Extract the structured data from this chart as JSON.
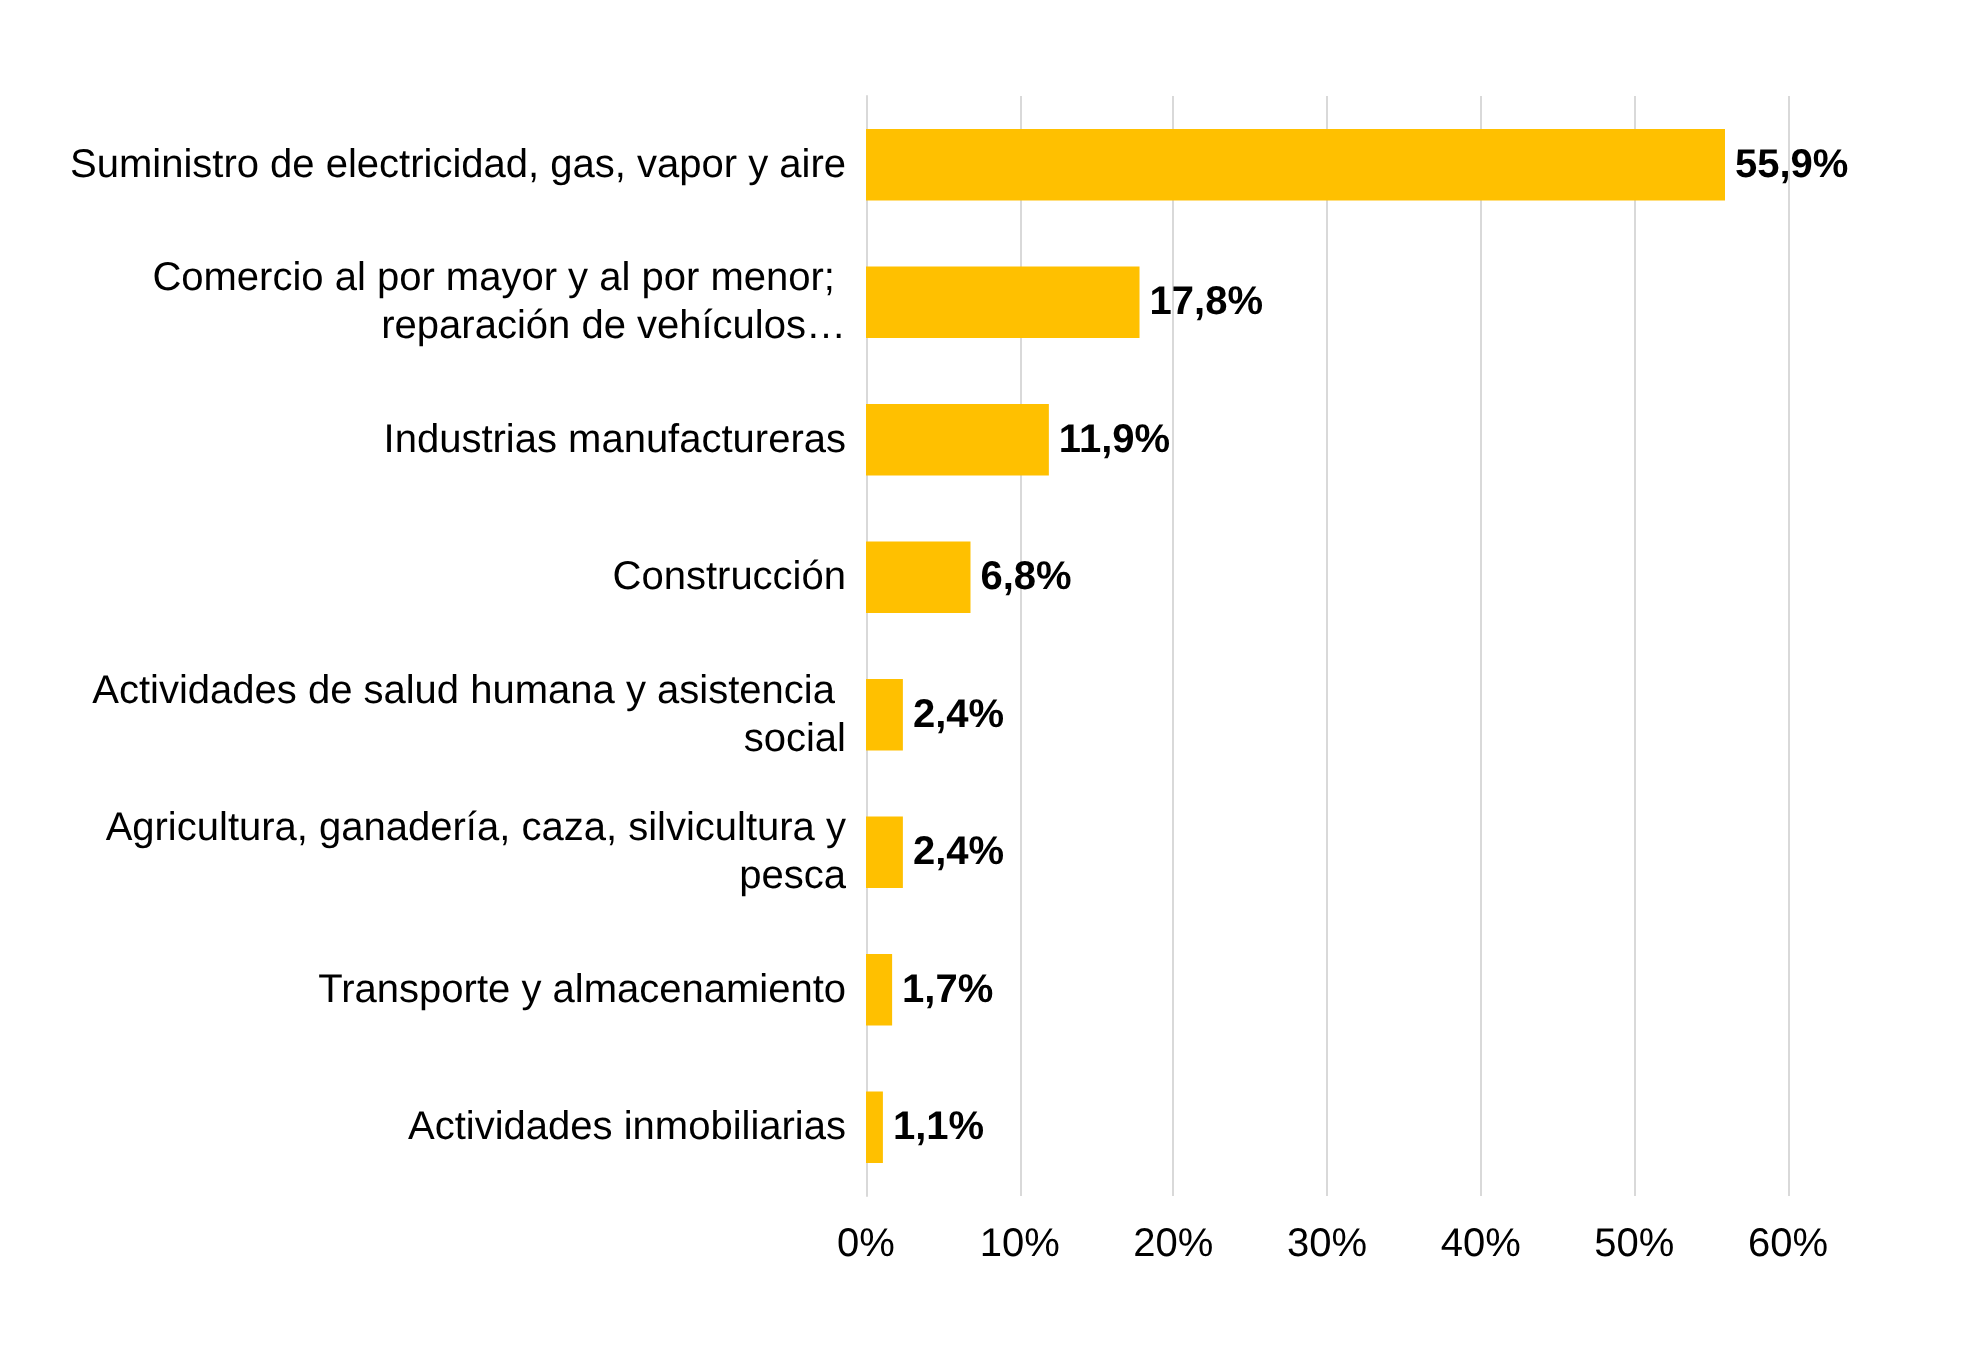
{
  "chart_data": {
    "type": "bar",
    "orientation": "horizontal",
    "categories": [
      "Suministro de electricidad, gas, vapor y aire",
      "Comercio al por mayor y al por menor; reparación de vehículos…",
      "Industrias manufactureras",
      "Construcción",
      "Actividades de salud humana y asistencia social",
      "Agricultura, ganadería, caza, silvicultura y pesca",
      "Transporte y almacenamiento",
      "Actividades inmobiliarias"
    ],
    "values": [
      55.9,
      17.8,
      11.9,
      6.8,
      2.4,
      2.4,
      1.7,
      1.1
    ],
    "value_labels": [
      "55,9%",
      "17,8%",
      "11,9%",
      "6,8%",
      "2,4%",
      "2,4%",
      "1,7%",
      "1,1%"
    ],
    "color": "#ffc000",
    "xlim": [
      0,
      60
    ],
    "xticks": [
      {
        "value": 0,
        "label": "0%"
      },
      {
        "value": 10,
        "label": "10%"
      },
      {
        "value": 20,
        "label": "20%"
      },
      {
        "value": 30,
        "label": "30%"
      },
      {
        "value": 40,
        "label": "40%"
      },
      {
        "value": 50,
        "label": "50%"
      },
      {
        "value": 60,
        "label": "60%"
      }
    ],
    "grid": "x"
  }
}
